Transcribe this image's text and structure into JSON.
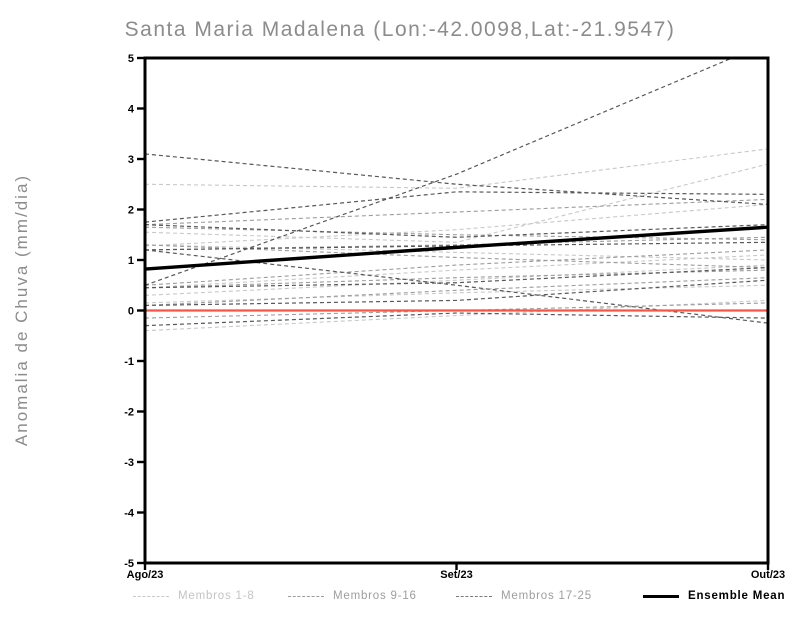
{
  "title": "Santa Maria Madalena (Lon:-42.0098,Lat:-21.9547)",
  "chart_data": {
    "type": "line",
    "title": "Santa Maria Madalena (Lon:-42.0098,Lat:-21.9547)",
    "xlabel": "",
    "ylabel": "Anomalia de Chuva (mm/dia)",
    "x_categories": [
      "Ago/23",
      "Set/23",
      "Out/23"
    ],
    "ylim": [
      -5,
      5
    ],
    "yticks": [
      5,
      4,
      3,
      2,
      1,
      0,
      -1,
      -2,
      -3,
      -4,
      -5
    ],
    "grid": false,
    "legend_position": "bottom",
    "frame_color": "#000000",
    "series": [
      {
        "name": "Membros 1-8",
        "color": "#c8c8c8",
        "style": "dashed",
        "width": 1.1,
        "members": [
          [
            2.5,
            2.42,
            3.2
          ],
          [
            1.55,
            1.35,
            2.9
          ],
          [
            1.28,
            1.6,
            2.1
          ],
          [
            0.3,
            0.6,
            0.9
          ],
          [
            0.15,
            0.35,
            0.5
          ],
          [
            -0.4,
            -0.1,
            0.2
          ],
          [
            0.45,
            0.8,
            1.1
          ],
          [
            1.3,
            1.15,
            1.0
          ]
        ]
      },
      {
        "name": "Membros 9-16",
        "color": "#9c9c9c",
        "style": "dashed",
        "width": 1.1,
        "members": [
          [
            1.7,
            1.95,
            2.2
          ],
          [
            1.2,
            1.3,
            1.45
          ],
          [
            0.5,
            0.9,
            1.2
          ],
          [
            0.1,
            0.4,
            0.65
          ],
          [
            1.3,
            1.05,
            0.85
          ],
          [
            0.45,
            0.65,
            0.8
          ],
          [
            1.65,
            1.5,
            1.4
          ],
          [
            -0.15,
            0.0,
            0.15
          ]
        ]
      },
      {
        "name": "Membros 17-25",
        "color": "#585858",
        "style": "dashed",
        "width": 1.2,
        "members": [
          [
            3.1,
            2.5,
            2.1
          ],
          [
            0.5,
            2.7,
            5.3
          ],
          [
            1.75,
            2.35,
            2.3
          ],
          [
            1.7,
            1.45,
            1.7
          ],
          [
            1.2,
            1.28,
            1.35
          ],
          [
            0.45,
            0.55,
            0.85
          ],
          [
            0.1,
            0.2,
            0.6
          ],
          [
            -0.3,
            -0.05,
            -0.15
          ],
          [
            1.2,
            0.5,
            -0.25
          ]
        ]
      },
      {
        "name": "Ensemble Mean",
        "color": "#000000",
        "style": "solid",
        "width": 3.4,
        "values": [
          0.82,
          1.25,
          1.65
        ]
      },
      {
        "name": "zero-reference-line",
        "color": "#fa5449",
        "style": "solid",
        "width": 2.2,
        "values": [
          0.0,
          0.0,
          0.0
        ],
        "in_legend": false
      }
    ],
    "legend": [
      {
        "label": "Membros 1-8",
        "line_color": "#c8c8c8",
        "text_color": "#c4c4c4",
        "style": "dashed"
      },
      {
        "label": "Membros 9-16",
        "line_color": "#9c9c9c",
        "text_color": "#9e9e9e",
        "style": "dashed"
      },
      {
        "label": "Membros 17-25",
        "line_color": "#7a7a7a",
        "text_color": "#9e9e9e",
        "style": "dashed"
      },
      {
        "label": "Ensemble Mean",
        "line_color": "#000000",
        "text_color": "#000000",
        "style": "solid"
      }
    ]
  }
}
